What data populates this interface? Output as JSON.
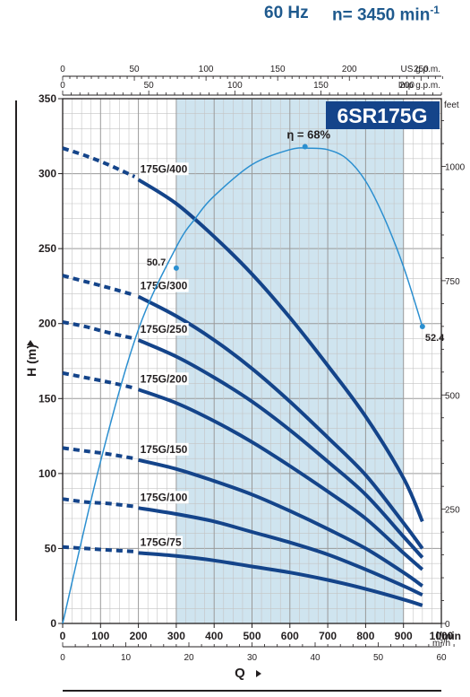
{
  "header": {
    "frequency": "60 Hz",
    "speed": "n= 3450 min",
    "speed_exp": "-1"
  },
  "chart_data": {
    "type": "line",
    "title": "6SR175G",
    "ylabel": "H (m)",
    "xlabel": "Q",
    "xlim": [
      0,
      1000
    ],
    "ylim": [
      0,
      350
    ],
    "x_ticks": [
      0,
      100,
      200,
      300,
      400,
      500,
      600,
      700,
      800,
      900,
      1000
    ],
    "x_unit": "l/min",
    "y_ticks": [
      0,
      50,
      100,
      150,
      200,
      250,
      300,
      350
    ],
    "top_axis_us": {
      "unit": "US g.p.m.",
      "ticks": [
        0,
        50,
        100,
        150,
        200,
        250
      ]
    },
    "top_axis_imp": {
      "unit": "Imp g.p.m.",
      "ticks": [
        0,
        50,
        100,
        150,
        200
      ]
    },
    "bottom_axis_m3h": {
      "unit": "m³/h",
      "ticks": [
        0,
        10,
        20,
        30,
        40,
        50,
        60
      ]
    },
    "right_axis_feet": {
      "unit": "feet",
      "ticks": [
        0,
        250,
        500,
        750,
        1000
      ]
    },
    "recommended_range": [
      300,
      900
    ],
    "series": [
      {
        "name": "175G/400",
        "dashed": {
          "x": [
            0,
            60,
            120,
            190
          ],
          "y": [
            317,
            312,
            306,
            298
          ]
        },
        "solid": {
          "x": [
            200,
            300,
            400,
            500,
            600,
            700,
            800,
            900,
            950
          ],
          "y": [
            296,
            280,
            258,
            233,
            204,
            172,
            138,
            97,
            68
          ]
        }
      },
      {
        "name": "175G/300",
        "dashed": {
          "x": [
            0,
            60,
            120,
            190
          ],
          "y": [
            232,
            228,
            224,
            219
          ]
        },
        "solid": {
          "x": [
            200,
            300,
            400,
            500,
            600,
            700,
            800,
            900,
            950
          ],
          "y": [
            218,
            205,
            189,
            170,
            148,
            124,
            99,
            67,
            50
          ]
        }
      },
      {
        "name": "175G/250",
        "dashed": {
          "x": [
            0,
            60,
            120,
            190
          ],
          "y": [
            201,
            198,
            194,
            190
          ]
        },
        "solid": {
          "x": [
            200,
            300,
            400,
            500,
            600,
            700,
            800,
            900,
            950
          ],
          "y": [
            189,
            178,
            164,
            148,
            129,
            108,
            86,
            58,
            44
          ]
        }
      },
      {
        "name": "175G/200",
        "dashed": {
          "x": [
            0,
            60,
            120,
            190
          ],
          "y": [
            167,
            164,
            161,
            157
          ]
        },
        "solid": {
          "x": [
            200,
            300,
            400,
            500,
            600,
            700,
            800,
            900,
            950
          ],
          "y": [
            156,
            147,
            135,
            121,
            105,
            88,
            70,
            47,
            36
          ]
        }
      },
      {
        "name": "175G/150",
        "dashed": {
          "x": [
            0,
            60,
            120,
            190
          ],
          "y": [
            117,
            115,
            113,
            110
          ]
        },
        "solid": {
          "x": [
            200,
            300,
            400,
            500,
            600,
            700,
            800,
            900,
            950
          ],
          "y": [
            109,
            103,
            95,
            86,
            75,
            63,
            50,
            34,
            25
          ]
        }
      },
      {
        "name": "175G/100",
        "dashed": {
          "x": [
            0,
            60,
            120,
            190
          ],
          "y": [
            83,
            81,
            80,
            78
          ]
        },
        "solid": {
          "x": [
            200,
            300,
            400,
            500,
            600,
            700,
            800,
            900,
            950
          ],
          "y": [
            77,
            73,
            68,
            61,
            54,
            46,
            36,
            25,
            19
          ]
        }
      },
      {
        "name": "175G/75",
        "dashed": {
          "x": [
            0,
            60,
            120,
            190
          ],
          "y": [
            51,
            50,
            49,
            48
          ]
        },
        "solid": {
          "x": [
            200,
            300,
            400,
            500,
            600,
            700,
            800,
            900,
            950
          ],
          "y": [
            47,
            45,
            42,
            38,
            34,
            29,
            23,
            16,
            12
          ]
        }
      }
    ],
    "efficiency_curve": {
      "name": "η",
      "x": [
        0,
        100,
        200,
        300,
        350,
        400,
        500,
        600,
        650,
        700,
        750,
        800,
        850,
        900,
        950
      ],
      "y": [
        0,
        108,
        196,
        251,
        270,
        285,
        306,
        316,
        317,
        316,
        310,
        295,
        270,
        238,
        198
      ],
      "labels": [
        {
          "text": "50.7",
          "x": 300,
          "y": 237
        },
        {
          "text": "η = 68%",
          "x": 640,
          "y": 318
        },
        {
          "text": "52.4",
          "x": 950,
          "y": 198
        }
      ]
    },
    "colors": {
      "curve": "#14448a",
      "efficiency": "#2b8fd0",
      "band": "#cfe4ef",
      "title_bg": "#14448a"
    }
  }
}
